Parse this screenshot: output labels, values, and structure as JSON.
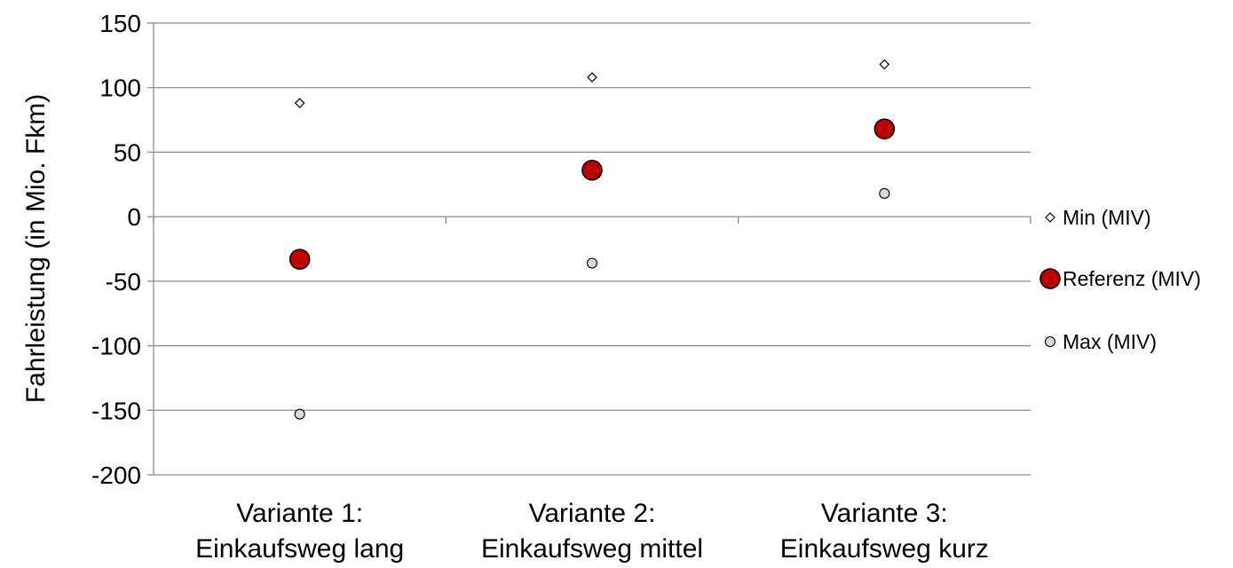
{
  "chart_data": {
    "type": "scatter",
    "title": "",
    "ylabel": "Fahrleistung (in Mio. Fkm)",
    "xlabel": "",
    "ylim": [
      -200,
      150
    ],
    "yticks": [
      150,
      100,
      50,
      0,
      -50,
      -100,
      -150,
      -200
    ],
    "grid": true,
    "legend_position": "right",
    "categories": [
      [
        "Variante 1:",
        "Einkaufsweg lang"
      ],
      [
        "Variante 2:",
        "Einkaufsweg mittel"
      ],
      [
        "Variante 3:",
        "Einkaufsweg kurz"
      ]
    ],
    "series": [
      {
        "name": "Min (MIV)",
        "marker": "diamond",
        "color": "#ffffff",
        "values": [
          88,
          108,
          118
        ]
      },
      {
        "name": "Referenz (MIV)",
        "marker": "circle-large",
        "color": "#c00000",
        "values": [
          -33,
          36,
          68
        ]
      },
      {
        "name": "Max (MIV)",
        "marker": "circle-small",
        "color": "#d9d9d9",
        "values": [
          -153,
          -36,
          18
        ]
      }
    ]
  }
}
